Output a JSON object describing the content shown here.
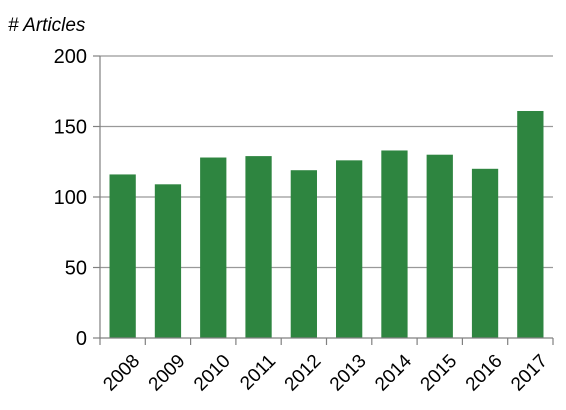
{
  "chart_data": {
    "type": "bar",
    "ylabel": "# Articles",
    "xlabel": "",
    "title": "",
    "categories": [
      "2008",
      "2009",
      "2010",
      "2011",
      "2012",
      "2013",
      "2014",
      "2015",
      "2016",
      "2017"
    ],
    "values": [
      116,
      109,
      128,
      129,
      119,
      126,
      133,
      130,
      120,
      161
    ],
    "ylim": [
      0,
      200
    ],
    "yticks": [
      0,
      50,
      100,
      150,
      200
    ],
    "grid": true,
    "bar_color": "#2e8540",
    "grid_color": "#999999",
    "axis_color": "#808080"
  }
}
